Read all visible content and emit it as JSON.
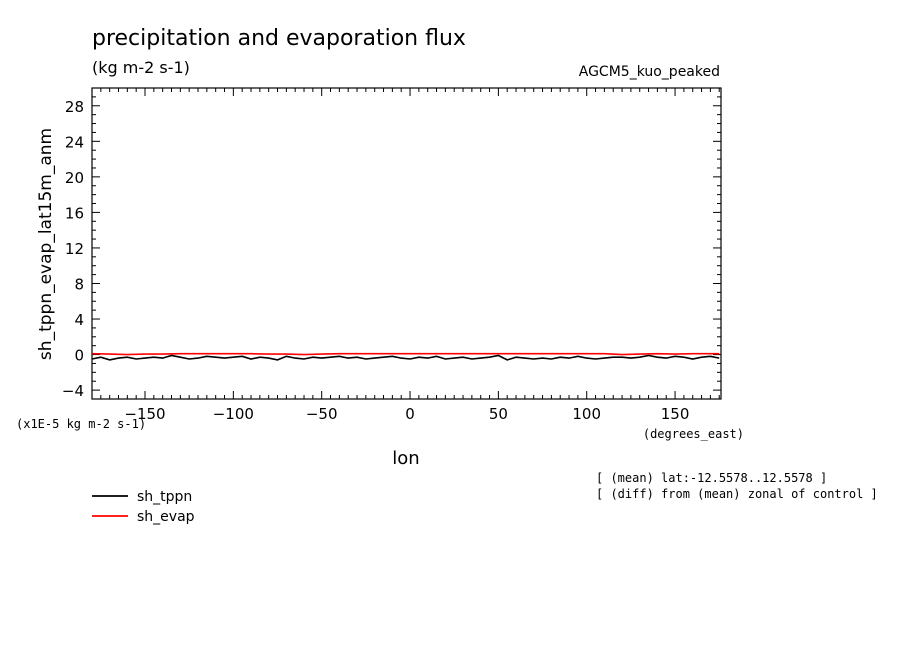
{
  "chart_data": {
    "type": "line",
    "title": "precipitation and evaporation flux",
    "units": "(kg m-2 s-1)",
    "model": "AGCM5_kuo_peaked",
    "ylabel": "sh_tppn_evap_lat15m_anm",
    "yunits": "(x1E-5 kg m-2 s-1)",
    "xlabel": "lon",
    "xunits": "(degrees_east)",
    "xlim": [
      -180,
      176
    ],
    "ylim": [
      -5,
      30
    ],
    "xticks": [
      -150,
      -100,
      -50,
      0,
      50,
      100,
      150
    ],
    "yticks": [
      -4,
      0,
      4,
      8,
      12,
      16,
      20,
      24,
      28
    ],
    "legend_position": "bottom-left",
    "notes": [
      "[ (mean) lat:-12.5578..12.5578 ]",
      "[ (diff) from (mean) zonal of control ]"
    ],
    "series": [
      {
        "name": "sh_tppn",
        "color": "#000000",
        "x": [
          -180,
          -175,
          -170,
          -165,
          -160,
          -155,
          -150,
          -145,
          -140,
          -135,
          -130,
          -125,
          -120,
          -115,
          -110,
          -105,
          -100,
          -95,
          -90,
          -85,
          -80,
          -75,
          -70,
          -65,
          -60,
          -55,
          -50,
          -45,
          -40,
          -35,
          -30,
          -25,
          -20,
          -15,
          -10,
          -5,
          0,
          5,
          10,
          15,
          20,
          25,
          30,
          35,
          40,
          45,
          50,
          55,
          60,
          65,
          70,
          75,
          80,
          85,
          90,
          95,
          100,
          105,
          110,
          115,
          120,
          125,
          130,
          135,
          140,
          145,
          150,
          155,
          160,
          165,
          170,
          175
        ],
        "y": [
          -0.5,
          -0.3,
          -0.6,
          -0.4,
          -0.3,
          -0.5,
          -0.4,
          -0.3,
          -0.4,
          -0.1,
          -0.3,
          -0.5,
          -0.4,
          -0.2,
          -0.3,
          -0.4,
          -0.3,
          -0.2,
          -0.5,
          -0.3,
          -0.4,
          -0.6,
          -0.2,
          -0.4,
          -0.5,
          -0.3,
          -0.4,
          -0.3,
          -0.2,
          -0.4,
          -0.3,
          -0.5,
          -0.4,
          -0.3,
          -0.2,
          -0.4,
          -0.5,
          -0.3,
          -0.4,
          -0.2,
          -0.5,
          -0.4,
          -0.3,
          -0.5,
          -0.4,
          -0.3,
          -0.1,
          -0.6,
          -0.3,
          -0.4,
          -0.5,
          -0.4,
          -0.5,
          -0.3,
          -0.4,
          -0.2,
          -0.4,
          -0.5,
          -0.4,
          -0.3,
          -0.3,
          -0.4,
          -0.3,
          -0.1,
          -0.3,
          -0.4,
          -0.2,
          -0.3,
          -0.5,
          -0.3,
          -0.2,
          -0.4
        ]
      },
      {
        "name": "sh_evap",
        "color": "#ff0000",
        "x": [
          -180,
          -170,
          -160,
          -150,
          -140,
          -130,
          -120,
          -110,
          -100,
          -90,
          -80,
          -70,
          -60,
          -50,
          -40,
          -30,
          -20,
          -10,
          0,
          10,
          20,
          30,
          40,
          50,
          60,
          70,
          80,
          90,
          100,
          110,
          120,
          130,
          140,
          150,
          160,
          170,
          175
        ],
        "y": [
          0.1,
          0.05,
          0.0,
          0.05,
          0.05,
          0.1,
          0.1,
          0.1,
          0.1,
          0.1,
          0.05,
          0.05,
          0.0,
          0.05,
          0.1,
          0.1,
          0.1,
          0.1,
          0.1,
          0.1,
          0.1,
          0.1,
          0.1,
          0.1,
          0.1,
          0.1,
          0.1,
          0.1,
          0.1,
          0.1,
          0.0,
          0.05,
          0.1,
          0.05,
          0.1,
          0.1,
          0.1
        ]
      }
    ]
  }
}
